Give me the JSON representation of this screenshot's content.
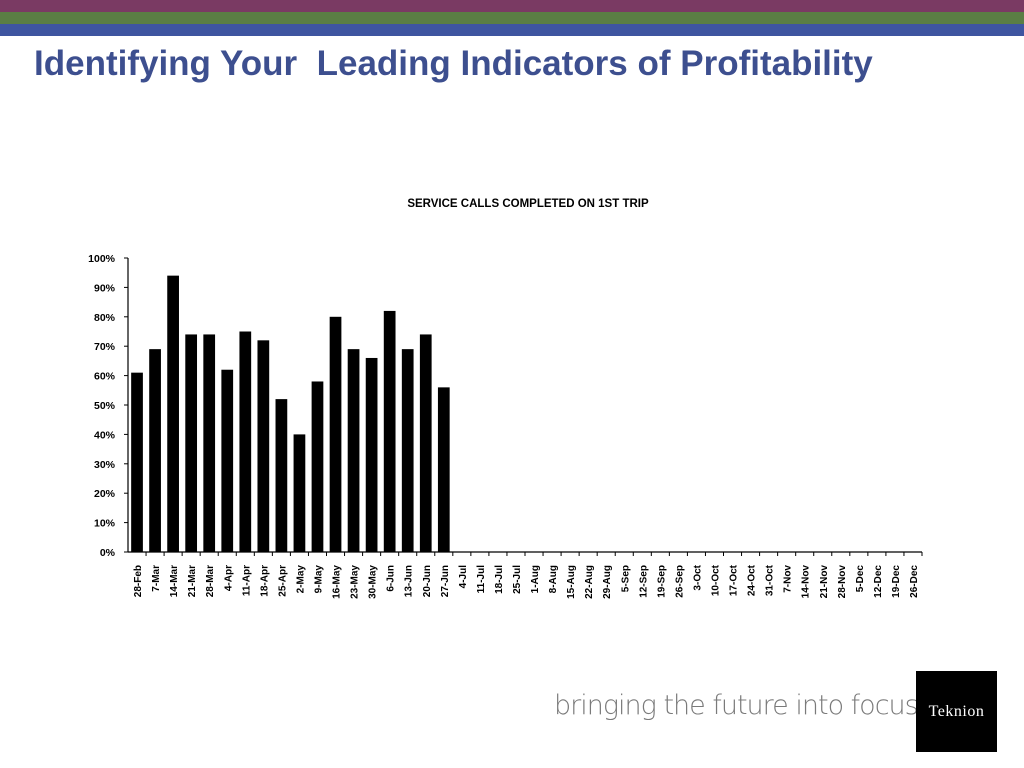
{
  "slide": {
    "title": "Identifying Your  Leading Indicators of Profitability",
    "tagline": "bringing the future into focus",
    "logo_text": "Teknion"
  },
  "colors": {
    "stripe_top": "#7a3a63",
    "stripe_middle": "#5a7e44",
    "stripe_bottom": "#3e55a0",
    "title": "#3d4f8f",
    "bar": "#000000"
  },
  "chart_data": {
    "type": "bar",
    "title": "SERVICE CALLS COMPLETED ON 1ST TRIP",
    "xlabel": "",
    "ylabel": "",
    "ylim": [
      0,
      100
    ],
    "yticks": [
      "0%",
      "10%",
      "20%",
      "30%",
      "40%",
      "50%",
      "60%",
      "70%",
      "80%",
      "90%",
      "100%"
    ],
    "grid": false,
    "legend": "none",
    "categories": [
      "28-Feb",
      "7-Mar",
      "14-Mar",
      "21-Mar",
      "28-Mar",
      "4-Apr",
      "11-Apr",
      "18-Apr",
      "25-Apr",
      "2-May",
      "9-May",
      "16-May",
      "23-May",
      "30-May",
      "6-Jun",
      "13-Jun",
      "20-Jun",
      "27-Jun",
      "4-Jul",
      "11-Jul",
      "18-Jul",
      "25-Jul",
      "1-Aug",
      "8-Aug",
      "15-Aug",
      "22-Aug",
      "29-Aug",
      "5-Sep",
      "12-Sep",
      "19-Sep",
      "26-Sep",
      "3-Oct",
      "10-Oct",
      "17-Oct",
      "24-Oct",
      "31-Oct",
      "7-Nov",
      "14-Nov",
      "21-Nov",
      "28-Nov",
      "5-Dec",
      "12-Dec",
      "19-Dec",
      "26-Dec"
    ],
    "values": [
      61,
      69,
      94,
      74,
      74,
      62,
      75,
      72,
      52,
      40,
      58,
      80,
      69,
      66,
      82,
      69,
      74,
      56,
      null,
      null,
      null,
      null,
      null,
      null,
      null,
      null,
      null,
      null,
      null,
      null,
      null,
      null,
      null,
      null,
      null,
      null,
      null,
      null,
      null,
      null,
      null,
      null,
      null,
      null
    ]
  }
}
